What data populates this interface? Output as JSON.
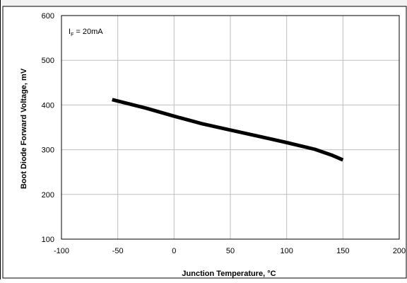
{
  "chart_data": {
    "type": "line",
    "xlabel": "Junction Temperature, °C",
    "ylabel": "Boot Diode Forward Voltage, mV",
    "xlim": [
      -100,
      200
    ],
    "ylim": [
      100,
      600
    ],
    "x_ticks": [
      "-100",
      "-50",
      "0",
      "50",
      "100",
      "150",
      "200"
    ],
    "y_ticks": [
      "100",
      "200",
      "300",
      "400",
      "500",
      "600"
    ],
    "grid": true,
    "annotation": {
      "main": "I",
      "subscript": "F",
      "rest": " = 20mA"
    },
    "series": [
      {
        "x": [
          -55,
          -25,
          0,
          25,
          50,
          75,
          100,
          125,
          140,
          150
        ],
        "y": [
          412,
          393,
          375,
          358,
          344,
          330,
          316,
          301,
          288,
          277
        ]
      }
    ],
    "colors": {
      "line": "#000000",
      "grid": "#bfbfbf",
      "frame": "#000000"
    }
  }
}
